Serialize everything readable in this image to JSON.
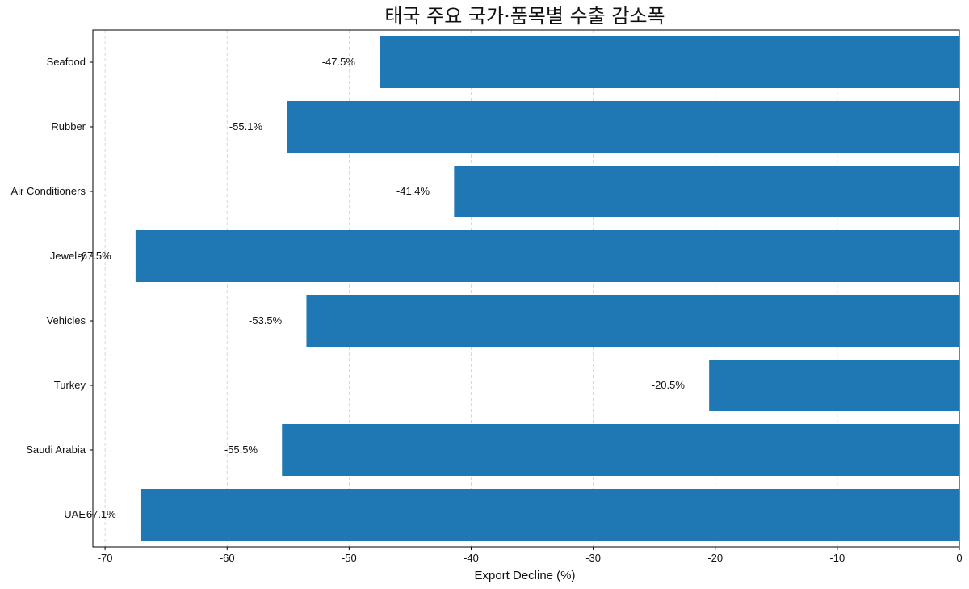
{
  "chart_data": {
    "type": "bar",
    "orientation": "horizontal",
    "title": "태국 주요 국가·품목별 수출 감소폭",
    "xlabel": "Export Decline (%)",
    "ylabel": "",
    "xlim": [
      -71,
      0
    ],
    "xticks": [
      -70,
      -60,
      -50,
      -40,
      -30,
      -20,
      -10,
      0
    ],
    "grid": "x-dashed",
    "categories": [
      "Seafood",
      "Rubber",
      "Air Conditioners",
      "Jewelry",
      "Vehicles",
      "Turkey",
      "Saudi Arabia",
      "UAE"
    ],
    "values": [
      -47.5,
      -55.1,
      -41.4,
      -67.5,
      -53.5,
      -20.5,
      -55.5,
      -67.1
    ],
    "data_labels": [
      "-47.5%",
      "-55.1%",
      "-41.4%",
      "-67.5%",
      "-53.5%",
      "-20.5%",
      "-55.5%",
      "-67.1%"
    ],
    "bar_color": "#1f77b4"
  }
}
